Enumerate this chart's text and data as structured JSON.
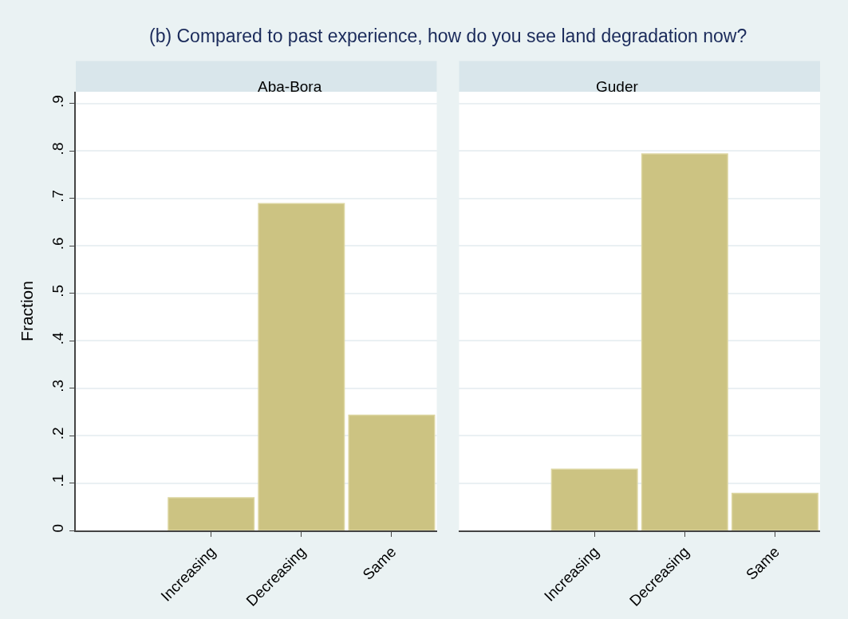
{
  "chart_data": [
    {
      "type": "bar",
      "title": "(b) Compared to past experience, how do you see land degradation now?",
      "subtitle": "Aba-Bora",
      "ylabel": "Fraction",
      "categories": [
        null,
        "Increasing",
        "Decreasing",
        "Same"
      ],
      "values": [
        null,
        0.069,
        0.689,
        0.243
      ],
      "color": "#ccc382",
      "ylim": [
        0,
        0.925
      ],
      "yticks": [
        {
          "value": 0,
          "label": "0"
        },
        {
          "value": 0.1,
          "label": ".1"
        },
        {
          "value": 0.2,
          "label": ".2"
        },
        {
          "value": 0.3,
          "label": ".3"
        },
        {
          "value": 0.4,
          "label": ".4"
        },
        {
          "value": 0.5,
          "label": ".5"
        },
        {
          "value": 0.6,
          "label": ".6"
        },
        {
          "value": 0.7,
          "label": ".7"
        },
        {
          "value": 0.8,
          "label": ".8"
        },
        {
          "value": 0.9,
          "label": ".9"
        }
      ],
      "grid": "y"
    },
    {
      "type": "bar",
      "subtitle": "Guder",
      "categories": [
        null,
        "Increasing",
        "Decreasing",
        "Same"
      ],
      "values": [
        null,
        0.129,
        0.794,
        0.078
      ],
      "color": "#ccc382",
      "ylim": [
        0,
        0.925
      ],
      "grid": "y",
      "tick_labels": "x"
    }
  ]
}
